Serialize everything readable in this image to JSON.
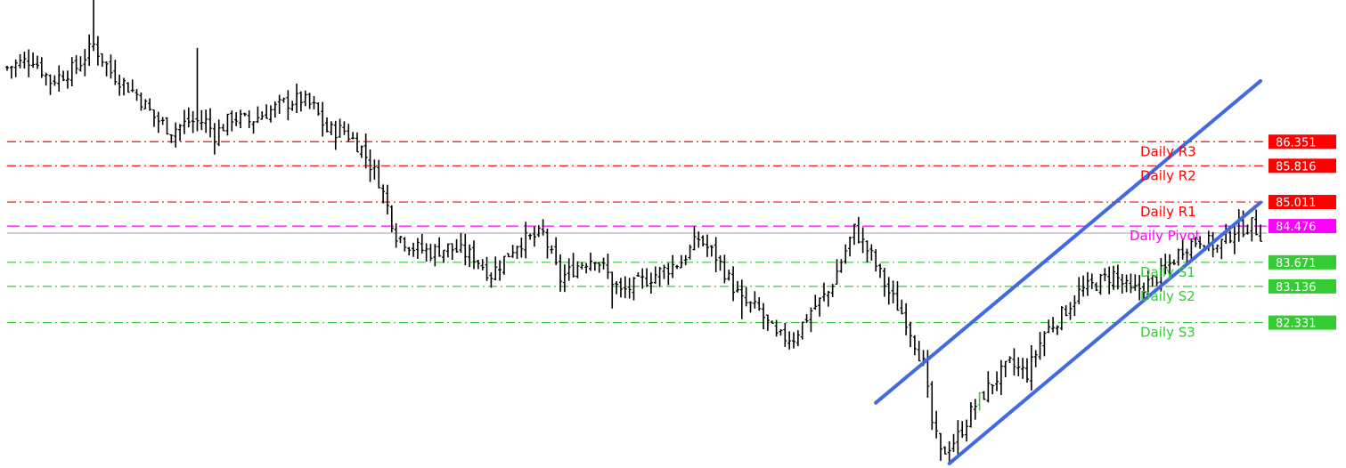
{
  "chart_data": {
    "type": "ohlc",
    "title": "",
    "xlabel": "",
    "ylabel": "",
    "ylim": [
      79.1,
      89.5
    ],
    "grid": false,
    "colors": {
      "background": "#ffffff",
      "bar": "#000000",
      "resistance": "#ff0000",
      "pivot": "#ff00ff",
      "support": "#33cc33",
      "channel": "#4169e1",
      "reference_line": "#a0a0a0"
    },
    "levels": [
      {
        "name": "Daily R3",
        "value": 86.351,
        "price_label": "86.351",
        "kind": "resistance"
      },
      {
        "name": "Daily R2",
        "value": 85.816,
        "price_label": "85.816",
        "kind": "resistance"
      },
      {
        "name": "Daily R1",
        "value": 85.011,
        "price_label": "85.011",
        "kind": "resistance"
      },
      {
        "name": "Daily Pivot",
        "value": 84.476,
        "price_label": "84.476",
        "kind": "pivot"
      },
      {
        "name": "Daily S1",
        "value": 83.671,
        "price_label": "83.671",
        "kind": "support"
      },
      {
        "name": "Daily S2",
        "value": 83.136,
        "price_label": "83.136",
        "kind": "support"
      },
      {
        "name": "Daily S3",
        "value": 82.331,
        "price_label": "82.331",
        "kind": "support"
      }
    ],
    "reference_line": {
      "value": 84.32
    },
    "anchors": [
      [
        0,
        88.0
      ],
      [
        6,
        88.2
      ],
      [
        10,
        87.7
      ],
      [
        16,
        88.0
      ],
      [
        20,
        88.5
      ],
      [
        24,
        87.9
      ],
      [
        30,
        87.4
      ],
      [
        34,
        86.9
      ],
      [
        38,
        86.6
      ],
      [
        42,
        86.8
      ],
      [
        46,
        86.8
      ],
      [
        48,
        86.5
      ],
      [
        52,
        86.9
      ],
      [
        56,
        86.8
      ],
      [
        60,
        87.0
      ],
      [
        64,
        87.2
      ],
      [
        68,
        87.3
      ],
      [
        71,
        87.1
      ],
      [
        74,
        86.6
      ],
      [
        78,
        86.6
      ],
      [
        82,
        86.2
      ],
      [
        86,
        85.5
      ],
      [
        90,
        84.3
      ],
      [
        94,
        84.0
      ],
      [
        98,
        83.9
      ],
      [
        102,
        84.0
      ],
      [
        108,
        83.8
      ],
      [
        112,
        83.4
      ],
      [
        118,
        84.1
      ],
      [
        124,
        84.3
      ],
      [
        128,
        83.3
      ],
      [
        132,
        83.6
      ],
      [
        136,
        83.8
      ],
      [
        142,
        83.0
      ],
      [
        146,
        83.2
      ],
      [
        152,
        83.5
      ],
      [
        156,
        83.7
      ],
      [
        160,
        84.2
      ],
      [
        164,
        83.8
      ],
      [
        170,
        82.8
      ],
      [
        174,
        82.6
      ],
      [
        178,
        82.0
      ],
      [
        182,
        82.0
      ],
      [
        186,
        82.6
      ],
      [
        190,
        83.0
      ],
      [
        193,
        83.7
      ],
      [
        196,
        84.4
      ],
      [
        200,
        83.8
      ],
      [
        204,
        83.0
      ],
      [
        208,
        82.4
      ],
      [
        212,
        81.4
      ],
      [
        214,
        80.1
      ],
      [
        216,
        79.4
      ],
      [
        220,
        79.8
      ],
      [
        224,
        80.5
      ],
      [
        228,
        81.0
      ],
      [
        232,
        81.4
      ],
      [
        236,
        81.2
      ],
      [
        240,
        82.1
      ],
      [
        244,
        82.5
      ],
      [
        248,
        83.0
      ],
      [
        252,
        83.2
      ],
      [
        256,
        83.4
      ],
      [
        260,
        83.0
      ],
      [
        264,
        83.2
      ],
      [
        268,
        83.5
      ],
      [
        272,
        84.0
      ],
      [
        276,
        84.2
      ],
      [
        280,
        84.0
      ],
      [
        284,
        84.4
      ],
      [
        288,
        84.5
      ],
      [
        290,
        84.3
      ]
    ],
    "bar_count": 291,
    "channel": {
      "upper": {
        "start": [
          201,
          80.55
        ],
        "end": [
          290,
          87.7
        ]
      },
      "lower": {
        "start": [
          218,
          79.2
        ],
        "end": [
          290,
          85.0
        ]
      }
    }
  }
}
